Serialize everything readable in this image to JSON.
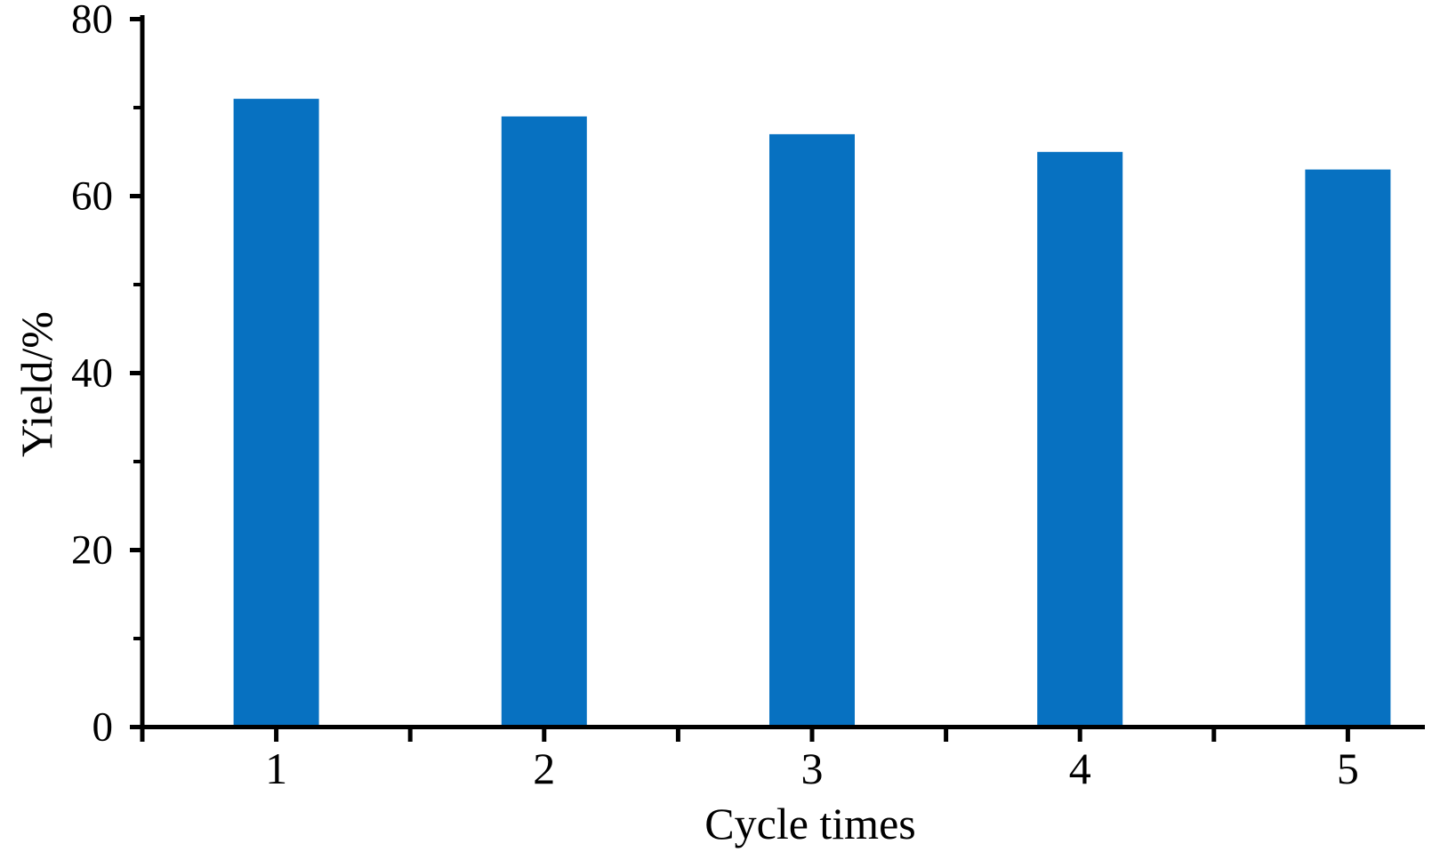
{
  "chart_data": {
    "type": "bar",
    "categories": [
      "1",
      "2",
      "3",
      "4",
      "5"
    ],
    "values": [
      71,
      69,
      67,
      65,
      63
    ],
    "xlabel": "Cycle times",
    "ylabel": "Yield/%",
    "ylim": [
      0,
      80
    ],
    "y_major_ticks": [
      0,
      20,
      40,
      60,
      80
    ],
    "y_minor_ticks": [
      10,
      30,
      50,
      70
    ],
    "grid": false,
    "legend": false,
    "bar_color": "#0771C1",
    "axis_color": "#000000",
    "text_color": "#000000",
    "background_color": "#FFFFFF"
  }
}
